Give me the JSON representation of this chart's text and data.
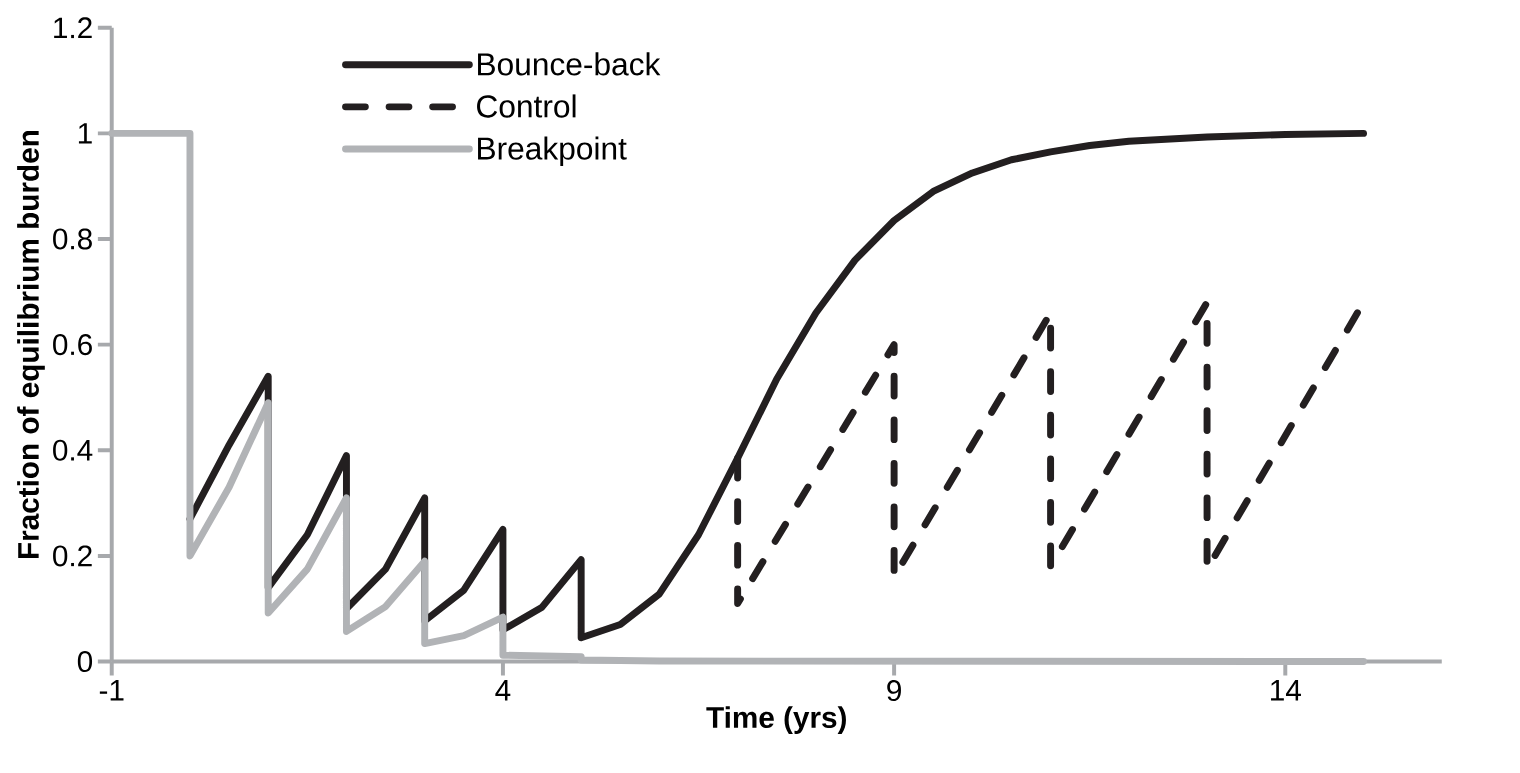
{
  "chart_data": {
    "type": "line",
    "xlabel": "Time (yrs)",
    "ylabel": "Fraction of equilibrium burden",
    "xlim": [
      -1,
      16
    ],
    "ylim": [
      0,
      1.2
    ],
    "xticks": [
      -1,
      4,
      9,
      14
    ],
    "yticks": [
      0,
      0.2,
      0.4,
      0.6,
      0.8,
      1,
      1.2
    ],
    "grid": false,
    "legend": "top left",
    "marker": "none",
    "series": [
      {
        "name": "Bounce-back",
        "color": "#231f20",
        "line_style": "solid",
        "x": [
          0,
          0.5,
          1,
          1,
          1.5,
          2,
          2,
          2.5,
          3,
          3,
          3.5,
          4,
          4,
          4.5,
          5,
          5,
          5.5,
          6,
          6.5,
          7,
          7.5,
          8,
          8.5,
          9,
          9.5,
          10,
          10.5,
          11,
          11.5,
          12,
          13,
          14,
          15
        ],
        "values": [
          0.27,
          0.41,
          0.54,
          0.14,
          0.24,
          0.39,
          0.1,
          0.175,
          0.31,
          0.077,
          0.135,
          0.25,
          0.06,
          0.103,
          0.193,
          0.045,
          0.07,
          0.128,
          0.24,
          0.385,
          0.535,
          0.66,
          0.76,
          0.835,
          0.89,
          0.925,
          0.95,
          0.965,
          0.977,
          0.985,
          0.993,
          0.998,
          1
        ]
      },
      {
        "name": "Control",
        "color": "#231f20",
        "line_style": "dashed",
        "x": [
          7,
          7,
          9,
          9,
          11,
          11,
          13,
          13,
          15
        ],
        "values": [
          0.385,
          0.11,
          0.6,
          0.16,
          0.66,
          0.18,
          0.68,
          0.175,
          0.68
        ]
      },
      {
        "name": "Breakpoint",
        "color": "#b1b3b6",
        "line_style": "solid",
        "x": [
          -1,
          0,
          0,
          0.5,
          1,
          1,
          1.5,
          2,
          2,
          2.5,
          3,
          3,
          3.5,
          4,
          4,
          5,
          5,
          6,
          15
        ],
        "values": [
          1,
          1,
          0.2,
          0.33,
          0.49,
          0.092,
          0.175,
          0.31,
          0.057,
          0.104,
          0.19,
          0.034,
          0.049,
          0.084,
          0.012,
          0.009,
          0.003,
          0.001,
          0
        ]
      }
    ]
  }
}
